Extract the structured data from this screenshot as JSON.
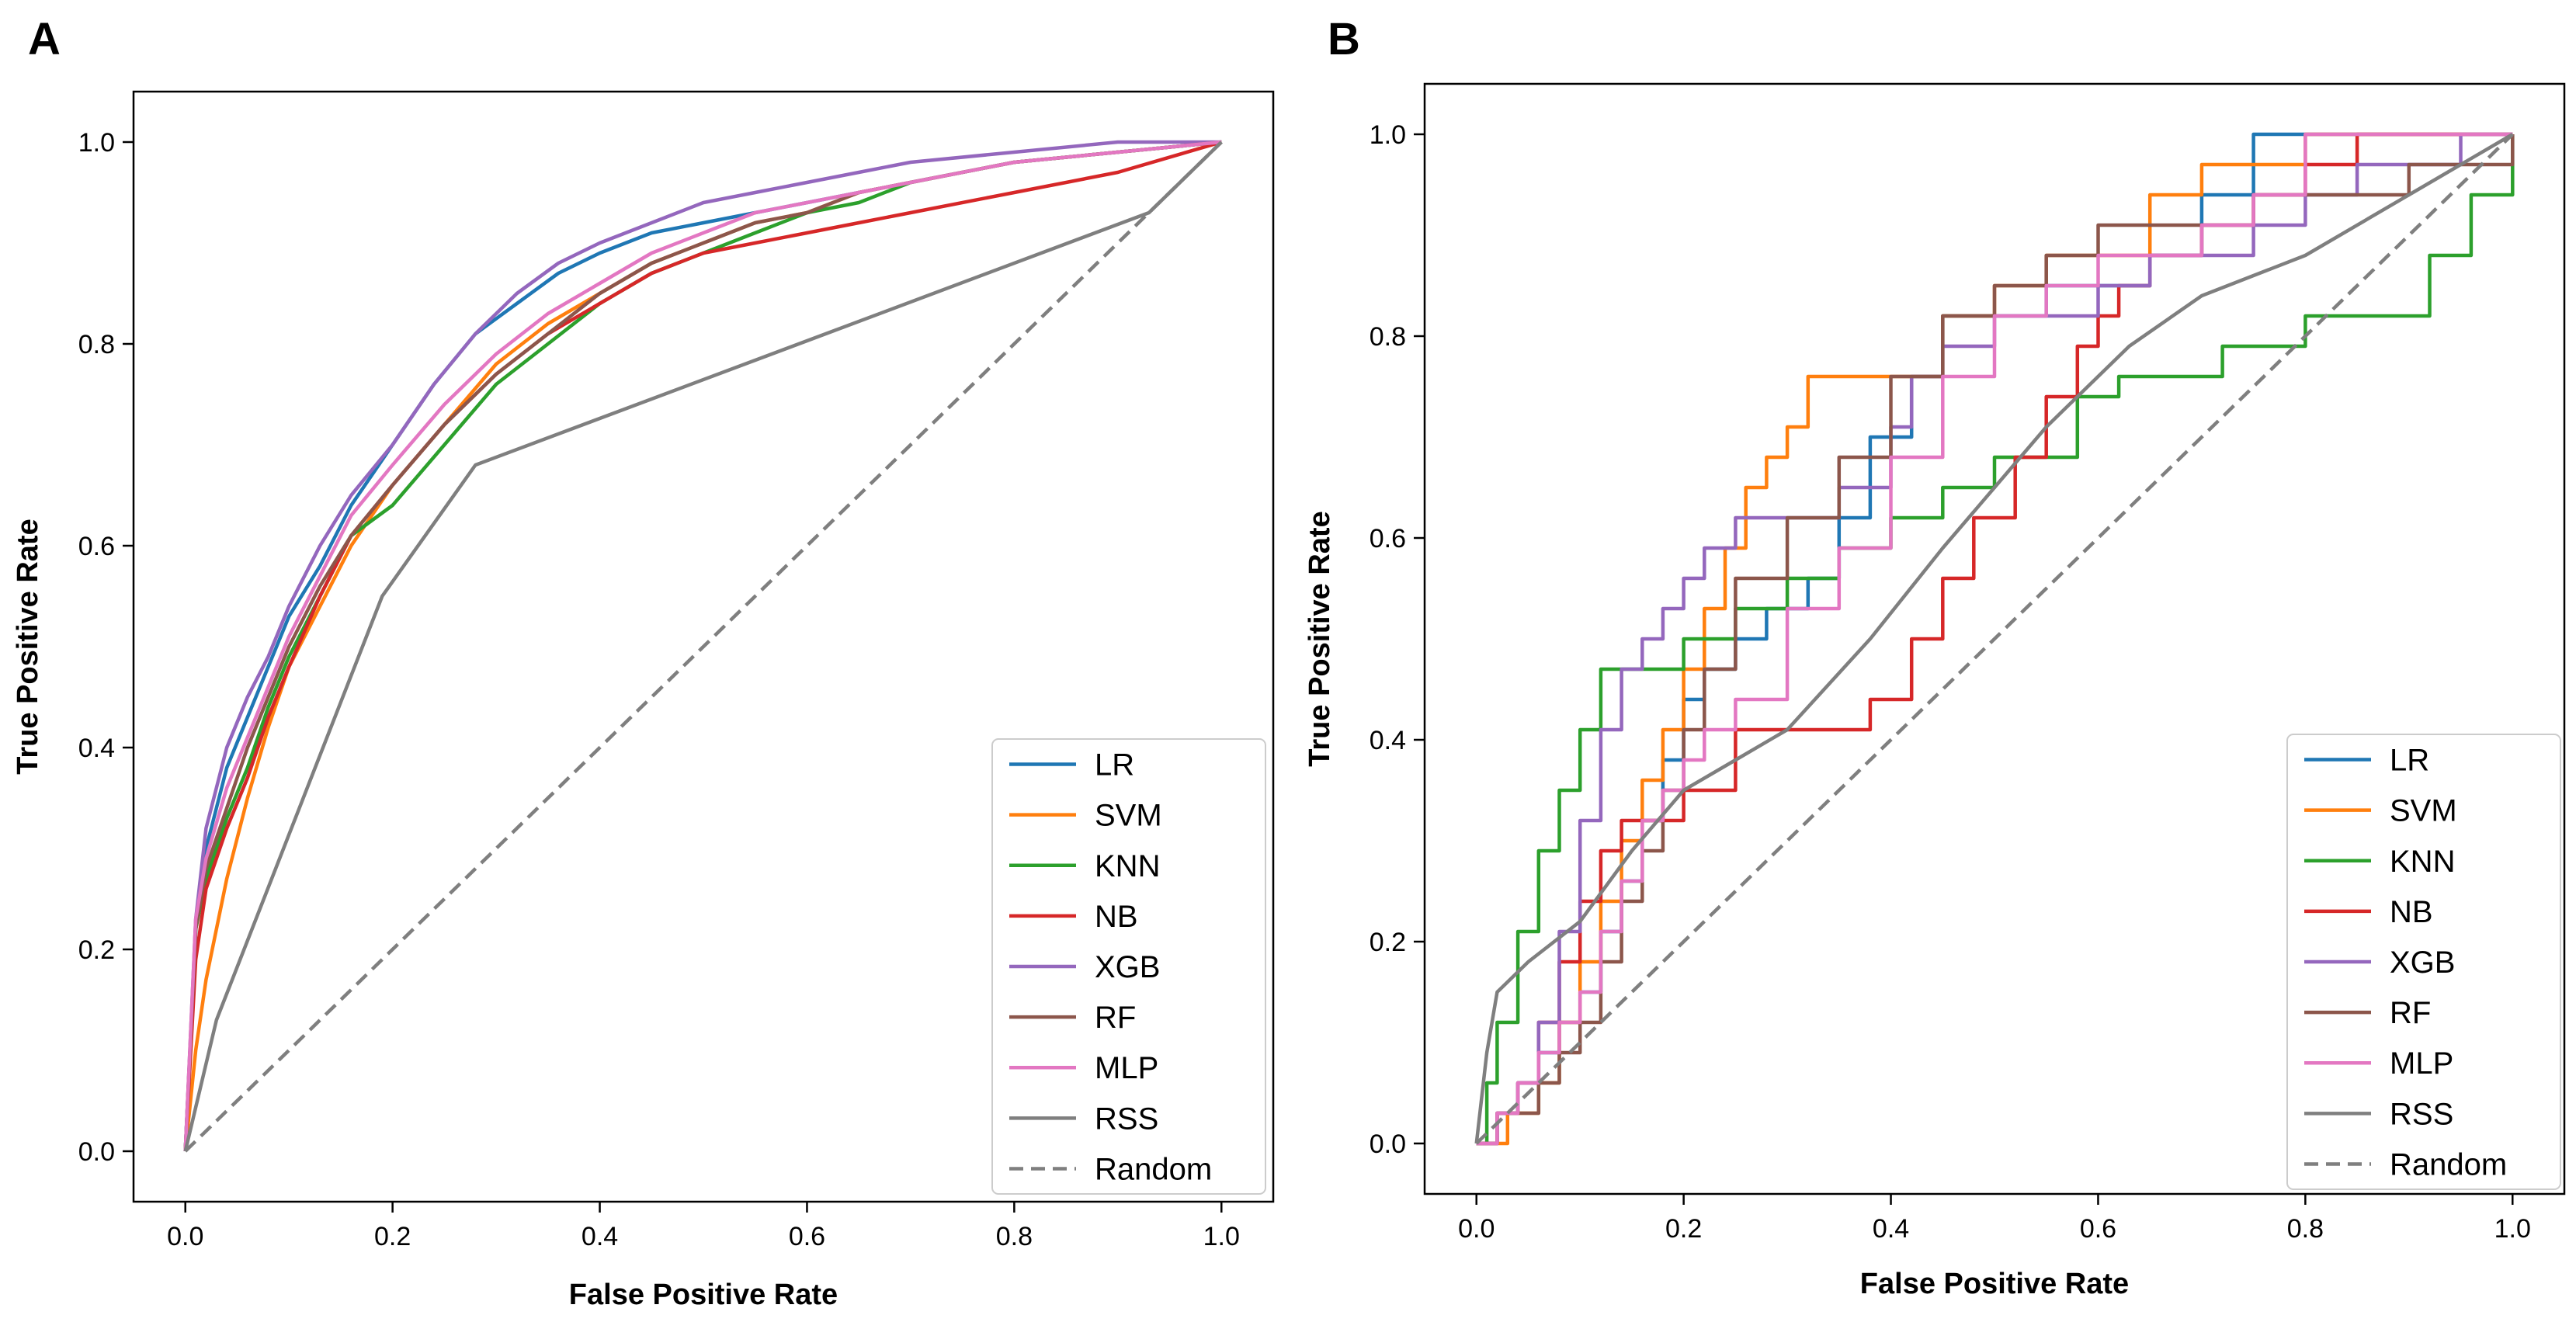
{
  "colors": {
    "LR": "#1f77b4",
    "SVM": "#ff7f0e",
    "KNN": "#2ca02c",
    "NB": "#d62728",
    "XGB": "#9467bd",
    "RF": "#8c564b",
    "MLP": "#e377c2",
    "RSS": "#7f7f7f",
    "Random": "#7f7f7f",
    "axis": "#000000"
  },
  "chart_data": [
    {
      "panel_label": "A",
      "type": "line",
      "xlabel": "False Positive Rate",
      "ylabel": "True Positive Rate",
      "xlim": [
        -0.05,
        1.05
      ],
      "ylim": [
        -0.05,
        1.05
      ],
      "xticks": [
        "0.0",
        "0.2",
        "0.4",
        "0.6",
        "0.8",
        "1.0"
      ],
      "yticks": [
        "0.0",
        "0.2",
        "0.4",
        "0.6",
        "0.8",
        "1.0"
      ],
      "grid": false,
      "legend": "lower right",
      "series": [
        {
          "name": "LR",
          "style": "solid",
          "x": [
            0,
            0.01,
            0.02,
            0.04,
            0.06,
            0.08,
            0.1,
            0.13,
            0.16,
            0.2,
            0.24,
            0.28,
            0.32,
            0.36,
            0.4,
            0.45,
            0.5,
            0.55,
            0.6,
            0.65,
            0.7,
            0.8,
            0.9,
            1.0
          ],
          "y": [
            0,
            0.22,
            0.3,
            0.38,
            0.43,
            0.48,
            0.53,
            0.58,
            0.64,
            0.7,
            0.76,
            0.81,
            0.84,
            0.87,
            0.89,
            0.91,
            0.92,
            0.93,
            0.94,
            0.95,
            0.96,
            0.98,
            0.99,
            1.0
          ]
        },
        {
          "name": "SVM",
          "style": "solid",
          "x": [
            0,
            0.01,
            0.02,
            0.04,
            0.06,
            0.08,
            0.1,
            0.13,
            0.16,
            0.2,
            0.25,
            0.3,
            0.35,
            0.4,
            0.45,
            0.5,
            0.55,
            0.6,
            0.65,
            0.7,
            0.8,
            0.9,
            1.0
          ],
          "y": [
            0,
            0.1,
            0.17,
            0.27,
            0.35,
            0.42,
            0.48,
            0.54,
            0.6,
            0.66,
            0.72,
            0.78,
            0.82,
            0.85,
            0.88,
            0.9,
            0.92,
            0.93,
            0.95,
            0.96,
            0.98,
            0.99,
            1.0
          ]
        },
        {
          "name": "KNN",
          "style": "solid",
          "x": [
            0,
            0.01,
            0.02,
            0.04,
            0.06,
            0.08,
            0.1,
            0.13,
            0.16,
            0.2,
            0.25,
            0.3,
            0.35,
            0.4,
            0.45,
            0.5,
            0.55,
            0.6,
            0.65,
            0.7,
            0.8,
            0.9,
            1.0
          ],
          "y": [
            0,
            0.22,
            0.27,
            0.33,
            0.38,
            0.44,
            0.49,
            0.55,
            0.61,
            0.64,
            0.7,
            0.76,
            0.8,
            0.84,
            0.87,
            0.89,
            0.91,
            0.93,
            0.94,
            0.96,
            0.98,
            0.99,
            1.0
          ]
        },
        {
          "name": "NB",
          "style": "solid",
          "x": [
            0,
            0.01,
            0.02,
            0.04,
            0.06,
            0.08,
            0.1,
            0.13,
            0.16,
            0.2,
            0.25,
            0.3,
            0.35,
            0.4,
            0.45,
            0.5,
            0.55,
            0.6,
            0.65,
            0.7,
            0.8,
            0.9,
            1.0
          ],
          "y": [
            0,
            0.19,
            0.26,
            0.32,
            0.37,
            0.43,
            0.48,
            0.55,
            0.61,
            0.66,
            0.72,
            0.77,
            0.81,
            0.84,
            0.87,
            0.89,
            0.9,
            0.91,
            0.92,
            0.93,
            0.95,
            0.97,
            1.0
          ]
        },
        {
          "name": "XGB",
          "style": "solid",
          "x": [
            0,
            0.01,
            0.02,
            0.04,
            0.06,
            0.08,
            0.1,
            0.13,
            0.16,
            0.2,
            0.24,
            0.28,
            0.32,
            0.36,
            0.4,
            0.45,
            0.5,
            0.55,
            0.6,
            0.65,
            0.7,
            0.8,
            0.9,
            1.0
          ],
          "y": [
            0,
            0.23,
            0.32,
            0.4,
            0.45,
            0.49,
            0.54,
            0.6,
            0.65,
            0.7,
            0.76,
            0.81,
            0.85,
            0.88,
            0.9,
            0.92,
            0.94,
            0.95,
            0.96,
            0.97,
            0.98,
            0.99,
            1.0,
            1.0
          ]
        },
        {
          "name": "RF",
          "style": "solid",
          "x": [
            0,
            0.01,
            0.02,
            0.04,
            0.06,
            0.08,
            0.1,
            0.13,
            0.16,
            0.2,
            0.25,
            0.3,
            0.35,
            0.4,
            0.45,
            0.5,
            0.55,
            0.6,
            0.65,
            0.7,
            0.8,
            0.9,
            1.0
          ],
          "y": [
            0,
            0.22,
            0.28,
            0.34,
            0.4,
            0.45,
            0.5,
            0.56,
            0.61,
            0.66,
            0.72,
            0.77,
            0.81,
            0.85,
            0.88,
            0.9,
            0.92,
            0.93,
            0.95,
            0.96,
            0.98,
            0.99,
            1.0
          ]
        },
        {
          "name": "MLP",
          "style": "solid",
          "x": [
            0,
            0.01,
            0.02,
            0.04,
            0.06,
            0.08,
            0.1,
            0.13,
            0.16,
            0.2,
            0.25,
            0.3,
            0.35,
            0.4,
            0.45,
            0.5,
            0.55,
            0.6,
            0.65,
            0.7,
            0.8,
            0.9,
            1.0
          ],
          "y": [
            0,
            0.23,
            0.29,
            0.36,
            0.41,
            0.46,
            0.51,
            0.57,
            0.63,
            0.68,
            0.74,
            0.79,
            0.83,
            0.86,
            0.89,
            0.91,
            0.93,
            0.94,
            0.95,
            0.96,
            0.98,
            0.99,
            1.0
          ]
        },
        {
          "name": "RSS",
          "style": "solid",
          "x": [
            0,
            0.03,
            0.19,
            0.28,
            0.93,
            1.0
          ],
          "y": [
            0,
            0.13,
            0.55,
            0.68,
            0.93,
            1.0
          ]
        },
        {
          "name": "Random",
          "style": "dashed",
          "x": [
            0,
            1
          ],
          "y": [
            0,
            1
          ]
        }
      ]
    },
    {
      "panel_label": "B",
      "type": "line",
      "xlabel": "False Positive Rate",
      "ylabel": "True Positive Rate",
      "xlim": [
        -0.05,
        1.05
      ],
      "ylim": [
        -0.05,
        1.05
      ],
      "xticks": [
        "0.0",
        "0.2",
        "0.4",
        "0.6",
        "0.8",
        "1.0"
      ],
      "yticks": [
        "0.0",
        "0.2",
        "0.4",
        "0.6",
        "0.8",
        "1.0"
      ],
      "grid": false,
      "legend": "lower right",
      "series": [
        {
          "name": "LR",
          "style": "step",
          "x": [
            0,
            0.02,
            0.04,
            0.06,
            0.08,
            0.1,
            0.12,
            0.14,
            0.16,
            0.18,
            0.2,
            0.22,
            0.25,
            0.28,
            0.32,
            0.35,
            0.38,
            0.42,
            0.45,
            0.5,
            0.55,
            0.6,
            0.65,
            0.7,
            0.75,
            0.8,
            0.85,
            0.9,
            0.95,
            1.0
          ],
          "y": [
            0,
            0.03,
            0.06,
            0.09,
            0.12,
            0.15,
            0.21,
            0.26,
            0.32,
            0.38,
            0.44,
            0.47,
            0.5,
            0.53,
            0.56,
            0.62,
            0.7,
            0.76,
            0.82,
            0.82,
            0.85,
            0.85,
            0.88,
            0.94,
            1.0,
            1.0,
            1.0,
            1.0,
            1.0,
            1.0
          ]
        },
        {
          "name": "SVM",
          "style": "step",
          "x": [
            0,
            0.03,
            0.06,
            0.08,
            0.1,
            0.12,
            0.14,
            0.16,
            0.18,
            0.2,
            0.22,
            0.24,
            0.26,
            0.28,
            0.3,
            0.32,
            0.35,
            0.4,
            0.45,
            0.5,
            0.55,
            0.6,
            0.65,
            0.7,
            0.75,
            0.8,
            0.85,
            0.9,
            0.95,
            1.0
          ],
          "y": [
            0,
            0.03,
            0.06,
            0.12,
            0.18,
            0.24,
            0.3,
            0.36,
            0.41,
            0.47,
            0.53,
            0.59,
            0.65,
            0.68,
            0.71,
            0.76,
            0.76,
            0.76,
            0.82,
            0.85,
            0.88,
            0.88,
            0.94,
            0.97,
            0.97,
            1.0,
            1.0,
            1.0,
            1.0,
            1.0
          ]
        },
        {
          "name": "KNN",
          "style": "step",
          "x": [
            0,
            0.01,
            0.02,
            0.04,
            0.06,
            0.08,
            0.1,
            0.12,
            0.14,
            0.16,
            0.2,
            0.25,
            0.3,
            0.35,
            0.4,
            0.45,
            0.5,
            0.55,
            0.58,
            0.62,
            0.68,
            0.72,
            0.8,
            0.85,
            0.88,
            0.92,
            0.96,
            1.0
          ],
          "y": [
            0,
            0.06,
            0.12,
            0.21,
            0.29,
            0.35,
            0.41,
            0.47,
            0.47,
            0.47,
            0.5,
            0.53,
            0.56,
            0.59,
            0.62,
            0.65,
            0.68,
            0.68,
            0.74,
            0.76,
            0.76,
            0.79,
            0.82,
            0.82,
            0.82,
            0.88,
            0.94,
            1.0
          ]
        },
        {
          "name": "NB",
          "style": "step",
          "x": [
            0,
            0.02,
            0.04,
            0.06,
            0.08,
            0.1,
            0.12,
            0.14,
            0.2,
            0.25,
            0.3,
            0.35,
            0.38,
            0.42,
            0.45,
            0.48,
            0.52,
            0.55,
            0.58,
            0.6,
            0.62,
            0.65,
            0.7,
            0.75,
            0.8,
            0.85,
            0.9,
            0.95,
            1.0
          ],
          "y": [
            0,
            0.03,
            0.06,
            0.12,
            0.18,
            0.24,
            0.29,
            0.32,
            0.35,
            0.41,
            0.41,
            0.41,
            0.44,
            0.5,
            0.56,
            0.62,
            0.68,
            0.74,
            0.79,
            0.82,
            0.85,
            0.88,
            0.91,
            0.94,
            0.97,
            1.0,
            1.0,
            1.0,
            1.0
          ]
        },
        {
          "name": "XGB",
          "style": "step",
          "x": [
            0,
            0.02,
            0.04,
            0.06,
            0.08,
            0.1,
            0.12,
            0.14,
            0.16,
            0.18,
            0.2,
            0.22,
            0.25,
            0.3,
            0.35,
            0.4,
            0.42,
            0.45,
            0.5,
            0.55,
            0.6,
            0.65,
            0.7,
            0.75,
            0.8,
            0.85,
            0.9,
            0.95,
            1.0
          ],
          "y": [
            0,
            0.03,
            0.06,
            0.12,
            0.21,
            0.32,
            0.41,
            0.47,
            0.5,
            0.53,
            0.56,
            0.59,
            0.62,
            0.62,
            0.65,
            0.71,
            0.76,
            0.79,
            0.82,
            0.82,
            0.85,
            0.88,
            0.88,
            0.91,
            0.94,
            0.97,
            0.97,
            1.0,
            1.0
          ]
        },
        {
          "name": "RF",
          "style": "step",
          "x": [
            0,
            0.02,
            0.04,
            0.06,
            0.08,
            0.1,
            0.12,
            0.14,
            0.16,
            0.18,
            0.2,
            0.22,
            0.25,
            0.3,
            0.35,
            0.4,
            0.45,
            0.5,
            0.55,
            0.6,
            0.65,
            0.7,
            0.75,
            0.8,
            0.85,
            0.9,
            0.95,
            1.0
          ],
          "y": [
            0,
            0.03,
            0.03,
            0.06,
            0.09,
            0.12,
            0.18,
            0.24,
            0.29,
            0.35,
            0.41,
            0.47,
            0.56,
            0.62,
            0.68,
            0.76,
            0.82,
            0.85,
            0.88,
            0.91,
            0.91,
            0.91,
            0.94,
            0.94,
            0.94,
            0.97,
            0.97,
            1.0
          ]
        },
        {
          "name": "MLP",
          "style": "step",
          "x": [
            0,
            0.02,
            0.04,
            0.06,
            0.08,
            0.1,
            0.12,
            0.14,
            0.16,
            0.18,
            0.2,
            0.22,
            0.25,
            0.3,
            0.35,
            0.4,
            0.45,
            0.5,
            0.55,
            0.6,
            0.65,
            0.7,
            0.75,
            0.8,
            0.85,
            0.9,
            0.95,
            1.0
          ],
          "y": [
            0,
            0.03,
            0.06,
            0.09,
            0.12,
            0.15,
            0.21,
            0.26,
            0.32,
            0.35,
            0.38,
            0.41,
            0.44,
            0.53,
            0.59,
            0.68,
            0.76,
            0.82,
            0.85,
            0.88,
            0.88,
            0.91,
            0.94,
            1.0,
            1.0,
            1.0,
            1.0,
            1.0
          ]
        },
        {
          "name": "RSS",
          "style": "solid",
          "x": [
            0,
            0.01,
            0.02,
            0.05,
            0.1,
            0.15,
            0.2,
            0.25,
            0.3,
            0.38,
            0.45,
            0.55,
            0.63,
            0.7,
            0.8,
            0.9,
            1.0
          ],
          "y": [
            0,
            0.09,
            0.15,
            0.18,
            0.22,
            0.29,
            0.35,
            0.38,
            0.41,
            0.5,
            0.59,
            0.71,
            0.79,
            0.84,
            0.88,
            0.94,
            1.0
          ]
        },
        {
          "name": "Random",
          "style": "dashed",
          "x": [
            0,
            1
          ],
          "y": [
            0,
            1
          ]
        }
      ]
    }
  ]
}
